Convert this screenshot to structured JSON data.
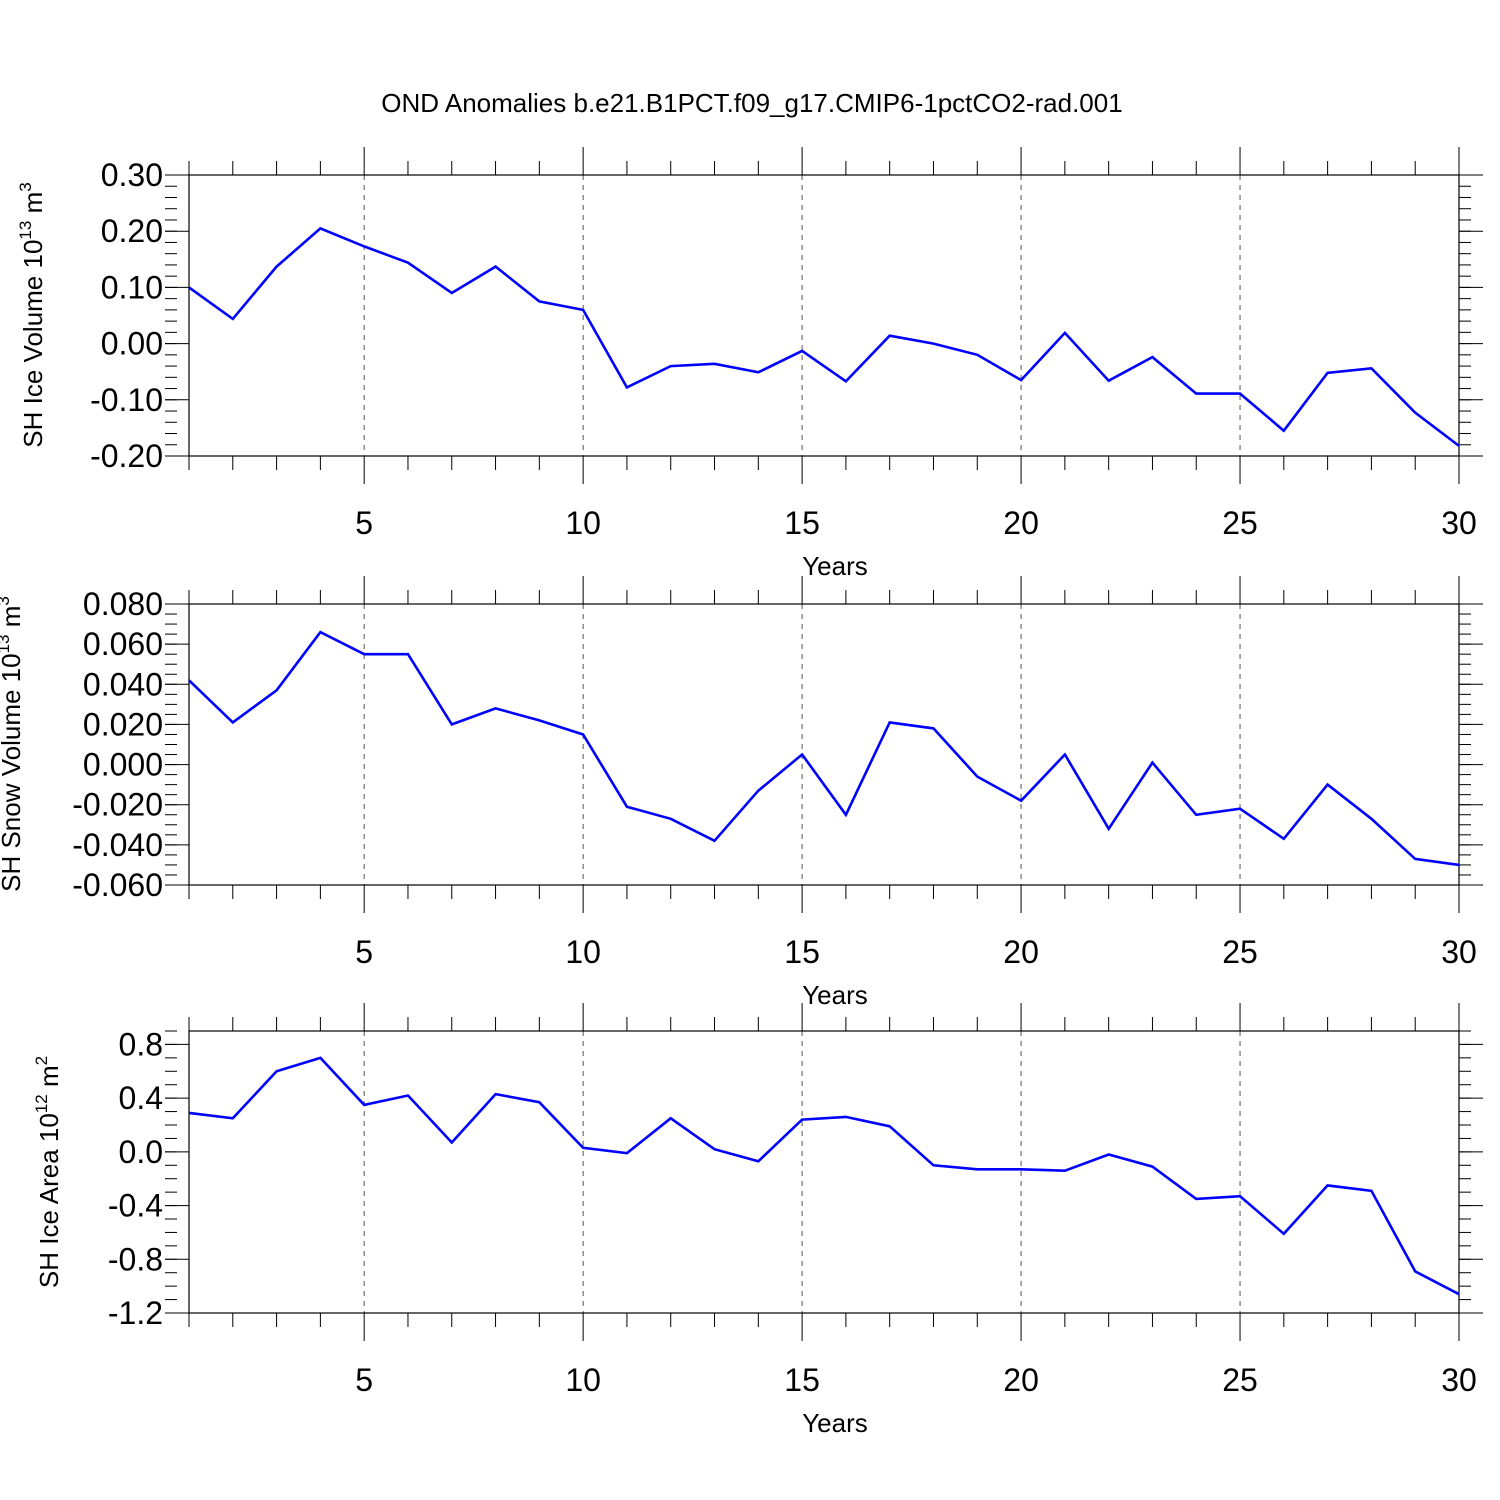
{
  "title": "OND Anomalies b.e21.B1PCT.f09_g17.CMIP6-1pctCO2-rad.001",
  "colors": {
    "line": "#0000ff",
    "axis": "#000000",
    "grid": "#555555",
    "background": "#ffffff"
  },
  "chart_data": [
    {
      "type": "line",
      "title": "",
      "xlabel": "Years",
      "ylabel": {
        "main": "SH Ice Volume 10",
        "exp": "13",
        "unit": " m",
        "unit_exp": "3"
      },
      "xlim": [
        1,
        30
      ],
      "ylim": [
        -0.2,
        0.3
      ],
      "xticks": [
        5,
        10,
        15,
        20,
        25,
        30
      ],
      "xtick_labels": [
        "5",
        "10",
        "15",
        "20",
        "25",
        "30"
      ],
      "yticks": [
        0.3,
        0.2,
        0.1,
        0.0,
        -0.1,
        -0.2
      ],
      "ytick_labels": [
        "0.30",
        "0.20",
        "0.10",
        "0.00",
        "-0.10",
        "-0.20"
      ],
      "grid": "vertical dashed at major x ticks",
      "series": [
        {
          "name": "SH Ice Volume",
          "x": [
            1,
            2,
            3,
            4,
            5,
            6,
            7,
            8,
            9,
            10,
            11,
            12,
            13,
            14,
            15,
            16,
            17,
            18,
            19,
            20,
            21,
            22,
            23,
            24,
            25,
            26,
            27,
            28,
            29,
            30
          ],
          "values": [
            0.1,
            0.044,
            0.137,
            0.205,
            0.173,
            0.144,
            0.09,
            0.137,
            0.075,
            0.06,
            -0.078,
            -0.04,
            -0.036,
            -0.051,
            -0.013,
            -0.067,
            0.014,
            0.0,
            -0.02,
            -0.065,
            0.019,
            -0.066,
            -0.024,
            -0.089,
            -0.089,
            -0.155,
            -0.052,
            -0.044,
            -0.123,
            -0.182
          ]
        }
      ]
    },
    {
      "type": "line",
      "title": "",
      "xlabel": "Years",
      "ylabel": {
        "main": "SH Snow Volume 10",
        "exp": "13",
        "unit": " m",
        "unit_exp": "3"
      },
      "xlim": [
        1,
        30
      ],
      "ylim": [
        -0.06,
        0.08
      ],
      "xticks": [
        5,
        10,
        15,
        20,
        25,
        30
      ],
      "xtick_labels": [
        "5",
        "10",
        "15",
        "20",
        "25",
        "30"
      ],
      "yticks": [
        0.08,
        0.06,
        0.04,
        0.02,
        0.0,
        -0.02,
        -0.04,
        -0.06
      ],
      "ytick_labels": [
        "0.080",
        "0.060",
        "0.040",
        "0.020",
        "0.000",
        "-0.020",
        "-0.040",
        "-0.060"
      ],
      "grid": "vertical dashed at major x ticks",
      "series": [
        {
          "name": "SH Snow Volume",
          "x": [
            1,
            2,
            3,
            4,
            5,
            6,
            7,
            8,
            9,
            10,
            11,
            12,
            13,
            14,
            15,
            16,
            17,
            18,
            19,
            20,
            21,
            22,
            23,
            24,
            25,
            26,
            27,
            28,
            29,
            30
          ],
          "values": [
            0.042,
            0.021,
            0.037,
            0.066,
            0.055,
            0.055,
            0.02,
            0.028,
            0.022,
            0.015,
            -0.021,
            -0.027,
            -0.038,
            -0.013,
            0.005,
            -0.025,
            0.021,
            0.018,
            -0.006,
            -0.018,
            0.005,
            -0.032,
            0.001,
            -0.025,
            -0.022,
            -0.037,
            -0.01,
            -0.027,
            -0.047,
            -0.05
          ]
        }
      ]
    },
    {
      "type": "line",
      "title": "",
      "xlabel": "Years",
      "ylabel": {
        "main": "SH Ice Area 10",
        "exp": "12",
        "unit": " m",
        "unit_exp": "2"
      },
      "xlim": [
        1,
        30
      ],
      "ylim": [
        -1.2,
        0.9
      ],
      "xticks": [
        5,
        10,
        15,
        20,
        25,
        30
      ],
      "xtick_labels": [
        "5",
        "10",
        "15",
        "20",
        "25",
        "30"
      ],
      "yticks": [
        0.8,
        0.4,
        0.0,
        -0.4,
        -0.8,
        -1.2
      ],
      "ytick_labels": [
        "0.8",
        "0.4",
        "0.0",
        "-0.4",
        "-0.8",
        "-1.2"
      ],
      "grid": "vertical dashed at major x ticks",
      "series": [
        {
          "name": "SH Ice Area",
          "x": [
            1,
            2,
            3,
            4,
            5,
            6,
            7,
            8,
            9,
            10,
            11,
            12,
            13,
            14,
            15,
            16,
            17,
            18,
            19,
            20,
            21,
            22,
            23,
            24,
            25,
            26,
            27,
            28,
            29,
            30
          ],
          "values": [
            0.29,
            0.25,
            0.6,
            0.7,
            0.35,
            0.42,
            0.07,
            0.43,
            0.37,
            0.03,
            -0.01,
            0.25,
            0.02,
            -0.07,
            0.24,
            0.26,
            0.19,
            -0.1,
            -0.13,
            -0.13,
            -0.14,
            -0.02,
            -0.11,
            -0.35,
            -0.33,
            -0.61,
            -0.25,
            -0.29,
            -0.89,
            -1.06
          ]
        }
      ]
    }
  ]
}
